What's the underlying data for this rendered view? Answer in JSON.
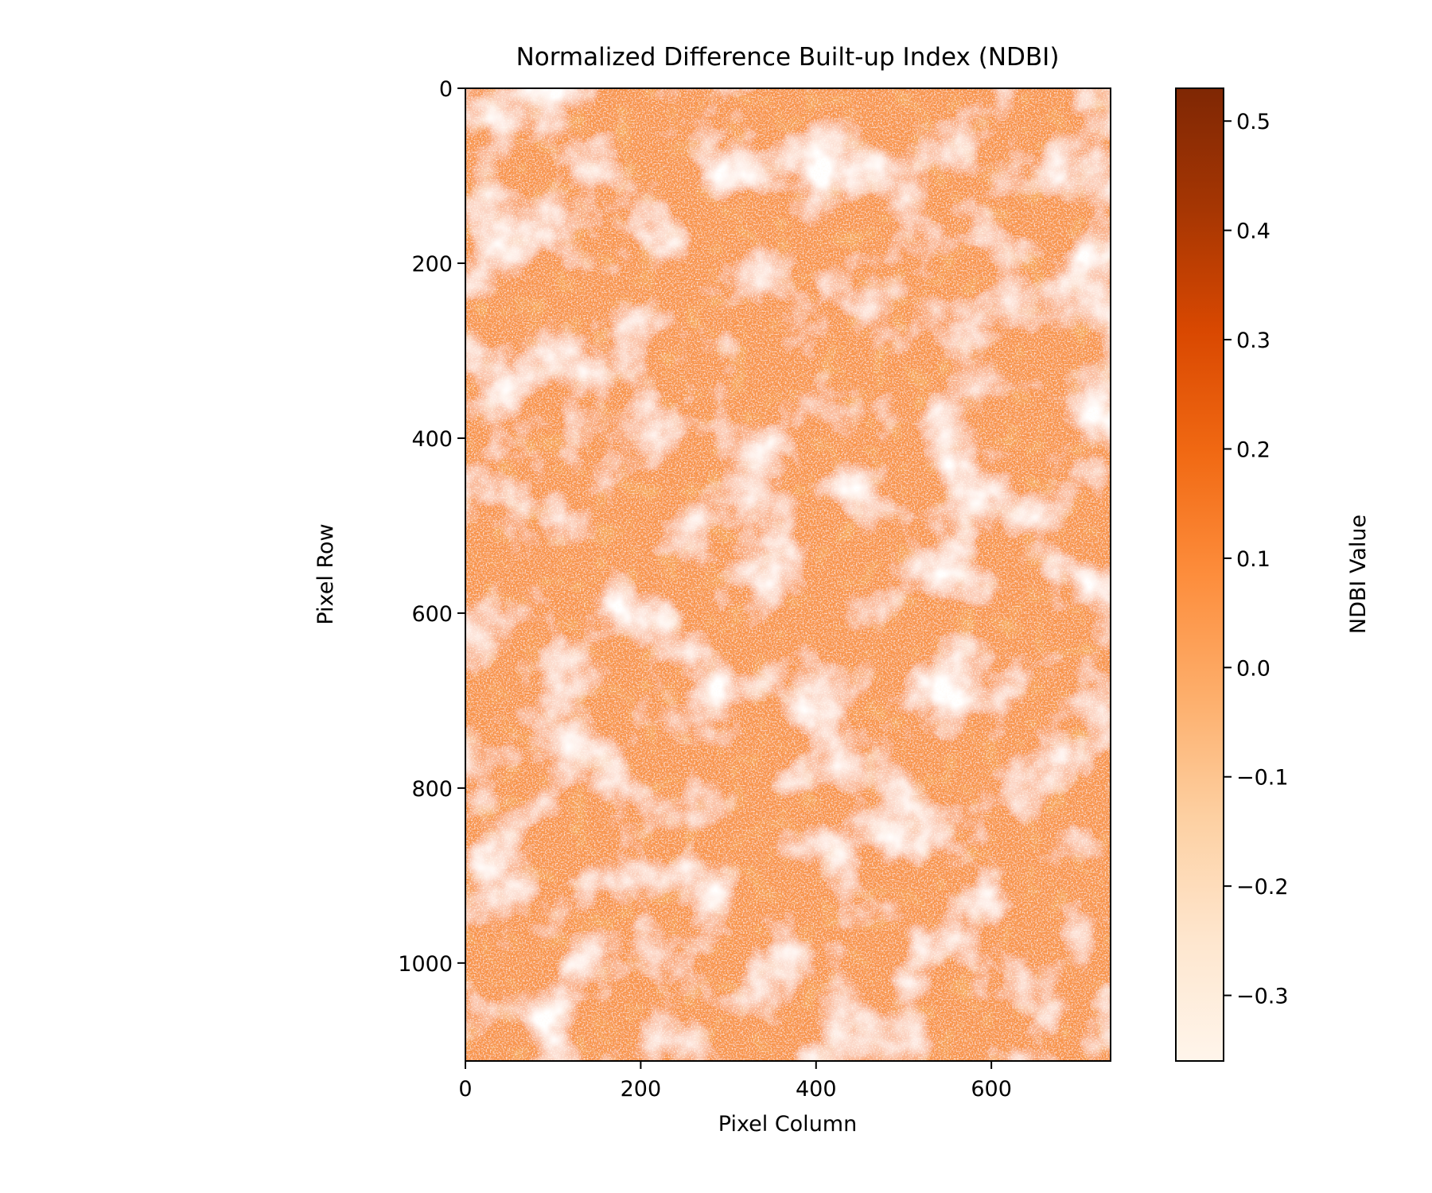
{
  "chart_data": {
    "type": "heatmap",
    "title": "Normalized Difference Built-up Index (NDBI)",
    "xlabel": "Pixel Column",
    "ylabel": "Pixel Row",
    "xlim": [
      0,
      736
    ],
    "ylim": [
      1112,
      0
    ],
    "x_ticks": [
      0,
      200,
      400,
      600
    ],
    "y_ticks": [
      0,
      200,
      400,
      600,
      800,
      1000
    ],
    "colormap": "Oranges",
    "colormap_stops": [
      "#fff5eb",
      "#fee6ce",
      "#fdd0a2",
      "#fdae6b",
      "#fd8d3c",
      "#f16913",
      "#d94801",
      "#a63603",
      "#7f2704"
    ],
    "dominant_color": "#f8944a",
    "value_range": [
      -0.36,
      0.53
    ],
    "colorbar": {
      "label": "NDBI Value",
      "ticks": [
        {
          "value": 0.5,
          "label": "0.5"
        },
        {
          "value": 0.4,
          "label": "0.4"
        },
        {
          "value": 0.3,
          "label": "0.3"
        },
        {
          "value": 0.2,
          "label": "0.2"
        },
        {
          "value": 0.1,
          "label": "0.1"
        },
        {
          "value": 0.0,
          "label": "0.0"
        },
        {
          "value": -0.1,
          "label": "−0.1"
        },
        {
          "value": -0.2,
          "label": "−0.2"
        },
        {
          "value": -0.3,
          "label": "−0.3"
        }
      ]
    },
    "grid": false
  }
}
